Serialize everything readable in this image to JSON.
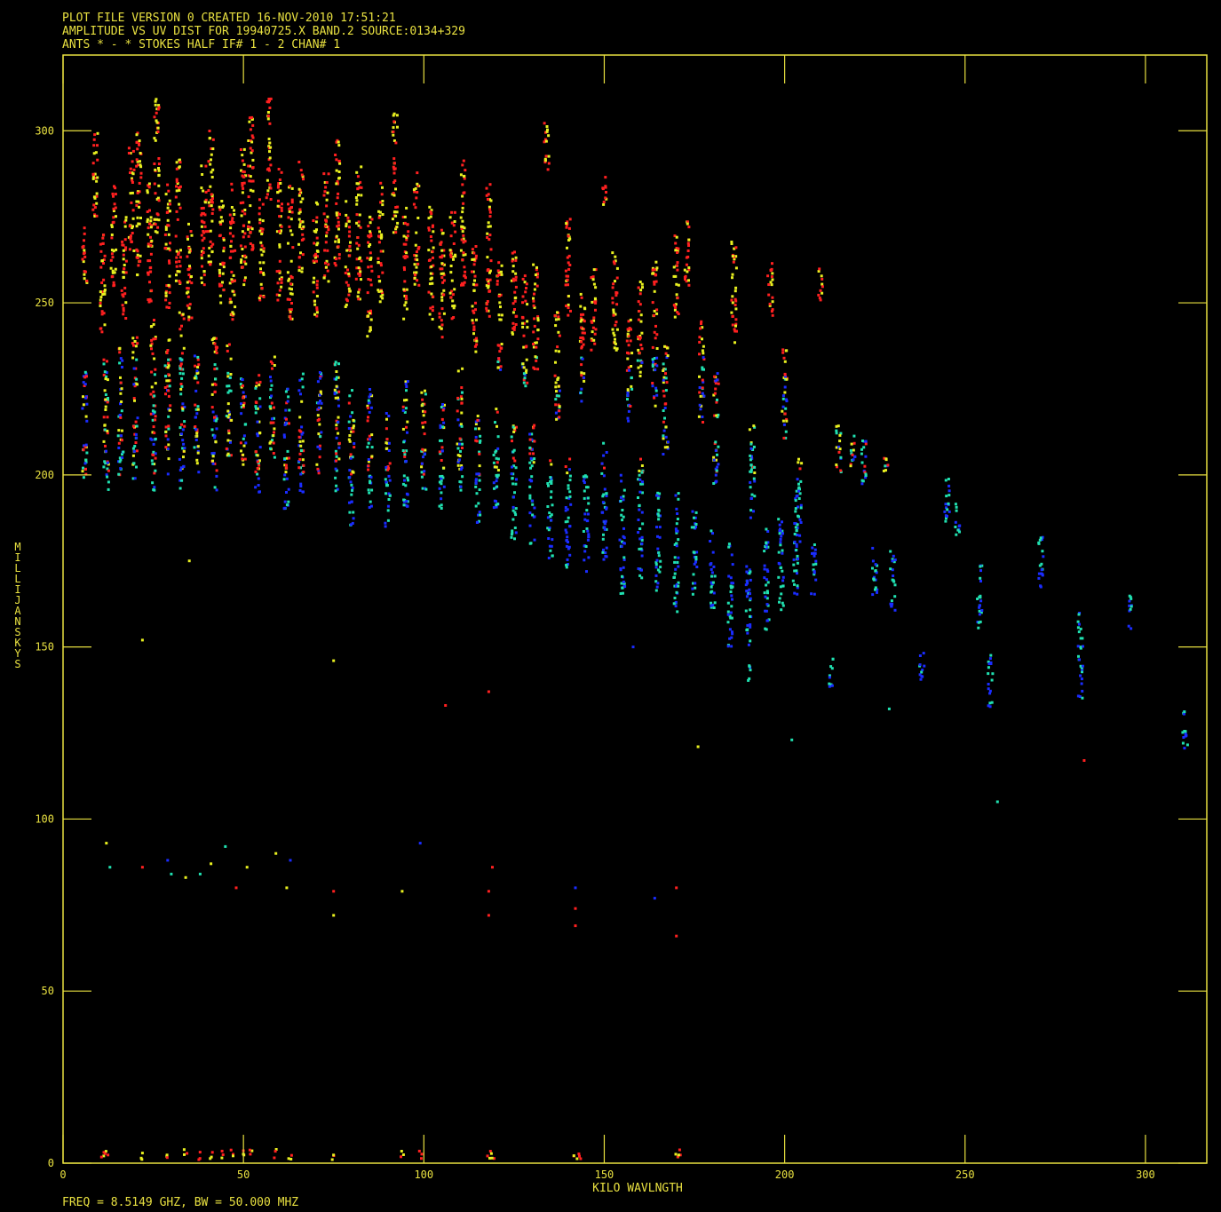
{
  "header": {
    "line1": "PLOT FILE VERSION 0  CREATED 16-NOV-2010 17:51:21",
    "line2": "AMPLITUDE VS UV DIST FOR 19940725.X BAND.2   SOURCE:0134+329",
    "line3": "ANTS * - *    STOKES HALF  IF# 1 - 2  CHAN# 1"
  },
  "footer": "FREQ = 8.5149 GHZ, BW = 50.000 MHZ",
  "colors": {
    "background": "#000000",
    "frame": "#e8e040",
    "text": "#e8e040",
    "series": [
      "#ff2020",
      "#e8f020",
      "#1a2cff",
      "#20e0b0"
    ]
  },
  "chart_data": {
    "type": "scatter",
    "title": "AMPLITUDE VS UV DIST FOR 19940725.X BAND.2   SOURCE:0134+329",
    "xlabel": "KILO WAVLNGTH",
    "ylabel": "MILLIJANSKYS",
    "xlim": [
      0,
      317
    ],
    "ylim": [
      0,
      322
    ],
    "xticks": [
      0,
      50,
      100,
      150,
      200,
      250,
      300
    ],
    "yticks": [
      0,
      50,
      100,
      150,
      200,
      250,
      300
    ],
    "grid": false,
    "columns": [
      {
        "x": 6,
        "y": [
          255,
          272
        ]
      },
      {
        "x": 9,
        "y": [
          275,
          300
        ]
      },
      {
        "x": 11,
        "y": [
          240,
          270
        ]
      },
      {
        "x": 14,
        "y": [
          255,
          285
        ]
      },
      {
        "x": 17,
        "y": [
          245,
          275
        ]
      },
      {
        "x": 19,
        "y": [
          265,
          295
        ]
      },
      {
        "x": 21,
        "y": [
          258,
          300
        ]
      },
      {
        "x": 24,
        "y": [
          250,
          285
        ]
      },
      {
        "x": 26,
        "y": [
          270,
          310
        ]
      },
      {
        "x": 29,
        "y": [
          248,
          285
        ]
      },
      {
        "x": 32,
        "y": [
          255,
          292
        ]
      },
      {
        "x": 35,
        "y": [
          245,
          275
        ]
      },
      {
        "x": 39,
        "y": [
          255,
          290
        ]
      },
      {
        "x": 41,
        "y": [
          260,
          300
        ]
      },
      {
        "x": 44,
        "y": [
          250,
          280
        ]
      },
      {
        "x": 47,
        "y": [
          245,
          285
        ]
      },
      {
        "x": 50,
        "y": [
          255,
          295
        ]
      },
      {
        "x": 52,
        "y": [
          265,
          305
        ]
      },
      {
        "x": 55,
        "y": [
          250,
          280
        ]
      },
      {
        "x": 57,
        "y": [
          280,
          310
        ]
      },
      {
        "x": 60,
        "y": [
          250,
          290
        ]
      },
      {
        "x": 63,
        "y": [
          245,
          285
        ]
      },
      {
        "x": 66,
        "y": [
          258,
          292
        ]
      },
      {
        "x": 70,
        "y": [
          245,
          280
        ]
      },
      {
        "x": 73,
        "y": [
          255,
          288
        ]
      },
      {
        "x": 76,
        "y": [
          260,
          298
        ]
      },
      {
        "x": 79,
        "y": [
          248,
          280
        ]
      },
      {
        "x": 82,
        "y": [
          250,
          290
        ]
      },
      {
        "x": 85,
        "y": [
          240,
          275
        ]
      },
      {
        "x": 88,
        "y": [
          250,
          285
        ]
      },
      {
        "x": 92,
        "y": [
          270,
          305
        ]
      },
      {
        "x": 95,
        "y": [
          245,
          278
        ]
      },
      {
        "x": 98,
        "y": [
          255,
          288
        ]
      },
      {
        "x": 102,
        "y": [
          245,
          280
        ]
      },
      {
        "x": 105,
        "y": [
          240,
          275
        ]
      },
      {
        "x": 108,
        "y": [
          245,
          278
        ]
      },
      {
        "x": 111,
        "y": [
          255,
          292
        ]
      },
      {
        "x": 114,
        "y": [
          235,
          270
        ]
      },
      {
        "x": 118,
        "y": [
          245,
          285
        ]
      },
      {
        "x": 121,
        "y": [
          230,
          262
        ]
      },
      {
        "x": 125,
        "y": [
          240,
          268
        ]
      },
      {
        "x": 128,
        "y": [
          225,
          258
        ]
      },
      {
        "x": 131,
        "y": [
          230,
          262
        ]
      },
      {
        "x": 134,
        "y": [
          288,
          303
        ]
      },
      {
        "x": 137,
        "y": [
          215,
          250
        ]
      },
      {
        "x": 140,
        "y": [
          245,
          275
        ]
      },
      {
        "x": 144,
        "y": [
          220,
          255
        ]
      },
      {
        "x": 147,
        "y": [
          235,
          260
        ]
      },
      {
        "x": 150,
        "y": [
          278,
          287
        ]
      },
      {
        "x": 153,
        "y": [
          235,
          265
        ]
      },
      {
        "x": 157,
        "y": [
          215,
          248
        ]
      },
      {
        "x": 160,
        "y": [
          228,
          258
        ]
      },
      {
        "x": 164,
        "y": [
          220,
          262
        ]
      },
      {
        "x": 167,
        "y": [
          205,
          240
        ]
      },
      {
        "x": 170,
        "y": [
          245,
          270
        ]
      },
      {
        "x": 173,
        "y": [
          255,
          275
        ]
      },
      {
        "x": 177,
        "y": [
          215,
          245
        ]
      },
      {
        "x": 181,
        "y": [
          195,
          230
        ]
      },
      {
        "x": 186,
        "y": [
          238,
          268
        ]
      },
      {
        "x": 191,
        "y": [
          185,
          215
        ]
      },
      {
        "x": 196,
        "y": [
          245,
          262
        ]
      },
      {
        "x": 200,
        "y": [
          210,
          238
        ]
      },
      {
        "x": 204,
        "y": [
          180,
          205
        ]
      },
      {
        "x": 210,
        "y": [
          250,
          260
        ]
      },
      {
        "x": 215,
        "y": [
          200,
          215
        ]
      },
      {
        "x": 222,
        "y": [
          195,
          212
        ]
      },
      {
        "x": 228,
        "y": [
          198,
          205
        ]
      },
      {
        "x": 245,
        "y": [
          185,
          200
        ]
      },
      {
        "x": 248,
        "y": [
          182,
          192
        ]
      },
      {
        "x": 271,
        "y": [
          165,
          182
        ]
      },
      {
        "x": 296,
        "y": [
          155,
          165
        ]
      },
      {
        "x": 6,
        "y": [
          198,
          230
        ]
      },
      {
        "x": 12,
        "y": [
          195,
          235
        ]
      },
      {
        "x": 16,
        "y": [
          200,
          238
        ]
      },
      {
        "x": 20,
        "y": [
          198,
          240
        ]
      },
      {
        "x": 25,
        "y": [
          195,
          245
        ]
      },
      {
        "x": 29,
        "y": [
          200,
          240
        ]
      },
      {
        "x": 33,
        "y": [
          195,
          248
        ]
      },
      {
        "x": 37,
        "y": [
          200,
          235
        ]
      },
      {
        "x": 42,
        "y": [
          195,
          240
        ]
      },
      {
        "x": 46,
        "y": [
          205,
          238
        ]
      },
      {
        "x": 50,
        "y": [
          200,
          228
        ]
      },
      {
        "x": 54,
        "y": [
          195,
          230
        ]
      },
      {
        "x": 58,
        "y": [
          205,
          235
        ]
      },
      {
        "x": 62,
        "y": [
          190,
          225
        ]
      },
      {
        "x": 66,
        "y": [
          195,
          230
        ]
      },
      {
        "x": 71,
        "y": [
          200,
          232
        ]
      },
      {
        "x": 76,
        "y": [
          195,
          235
        ]
      },
      {
        "x": 80,
        "y": [
          185,
          225
        ]
      },
      {
        "x": 85,
        "y": [
          190,
          225
        ]
      },
      {
        "x": 90,
        "y": [
          185,
          218
        ]
      },
      {
        "x": 95,
        "y": [
          190,
          228
        ]
      },
      {
        "x": 100,
        "y": [
          195,
          225
        ]
      },
      {
        "x": 105,
        "y": [
          190,
          222
        ]
      },
      {
        "x": 110,
        "y": [
          195,
          232
        ]
      },
      {
        "x": 115,
        "y": [
          185,
          218
        ]
      },
      {
        "x": 120,
        "y": [
          190,
          222
        ]
      },
      {
        "x": 125,
        "y": [
          180,
          215
        ]
      },
      {
        "x": 130,
        "y": [
          178,
          215
        ]
      },
      {
        "x": 135,
        "y": [
          175,
          205
        ]
      },
      {
        "x": 140,
        "y": [
          172,
          205
        ]
      },
      {
        "x": 145,
        "y": [
          170,
          200
        ]
      },
      {
        "x": 150,
        "y": [
          175,
          210
        ]
      },
      {
        "x": 155,
        "y": [
          165,
          200
        ]
      },
      {
        "x": 160,
        "y": [
          170,
          205
        ]
      },
      {
        "x": 165,
        "y": [
          165,
          195
        ]
      },
      {
        "x": 170,
        "y": [
          160,
          195
        ]
      },
      {
        "x": 175,
        "y": [
          165,
          190
        ]
      },
      {
        "x": 180,
        "y": [
          160,
          185
        ]
      },
      {
        "x": 185,
        "y": [
          150,
          180
        ]
      },
      {
        "x": 190,
        "y": [
          140,
          175
        ]
      },
      {
        "x": 195,
        "y": [
          155,
          185
        ]
      },
      {
        "x": 199,
        "y": [
          160,
          190
        ]
      },
      {
        "x": 203,
        "y": [
          165,
          195
        ]
      },
      {
        "x": 208,
        "y": [
          165,
          180
        ]
      },
      {
        "x": 213,
        "y": [
          138,
          148
        ]
      },
      {
        "x": 219,
        "y": [
          200,
          212
        ]
      },
      {
        "x": 225,
        "y": [
          165,
          180
        ]
      },
      {
        "x": 230,
        "y": [
          160,
          178
        ]
      },
      {
        "x": 238,
        "y": [
          140,
          150
        ]
      },
      {
        "x": 254,
        "y": [
          155,
          175
        ]
      },
      {
        "x": 257,
        "y": [
          132,
          148
        ]
      },
      {
        "x": 282,
        "y": [
          135,
          160
        ]
      },
      {
        "x": 311,
        "y": [
          120,
          133
        ]
      }
    ],
    "outliers": [
      {
        "x": 12,
        "y": 93
      },
      {
        "x": 13,
        "y": 86
      },
      {
        "x": 22,
        "y": 86
      },
      {
        "x": 29,
        "y": 88
      },
      {
        "x": 30,
        "y": 84
      },
      {
        "x": 34,
        "y": 83
      },
      {
        "x": 38,
        "y": 84
      },
      {
        "x": 41,
        "y": 87
      },
      {
        "x": 45,
        "y": 92
      },
      {
        "x": 48,
        "y": 80
      },
      {
        "x": 51,
        "y": 86
      },
      {
        "x": 59,
        "y": 90
      },
      {
        "x": 62,
        "y": 80
      },
      {
        "x": 63,
        "y": 88
      },
      {
        "x": 75,
        "y": 79
      },
      {
        "x": 75,
        "y": 72
      },
      {
        "x": 94,
        "y": 79
      },
      {
        "x": 99,
        "y": 93
      },
      {
        "x": 118,
        "y": 79
      },
      {
        "x": 118,
        "y": 72
      },
      {
        "x": 119,
        "y": 86
      },
      {
        "x": 142,
        "y": 80
      },
      {
        "x": 142,
        "y": 74
      },
      {
        "x": 142,
        "y": 69
      },
      {
        "x": 164,
        "y": 77
      },
      {
        "x": 170,
        "y": 80
      },
      {
        "x": 170,
        "y": 66
      },
      {
        "x": 22,
        "y": 152
      },
      {
        "x": 35,
        "y": 175
      },
      {
        "x": 75,
        "y": 146
      },
      {
        "x": 106,
        "y": 133
      },
      {
        "x": 118,
        "y": 137
      },
      {
        "x": 158,
        "y": 150
      },
      {
        "x": 176,
        "y": 121
      },
      {
        "x": 202,
        "y": 123
      },
      {
        "x": 229,
        "y": 132
      },
      {
        "x": 259,
        "y": 105
      },
      {
        "x": 283,
        "y": 117
      }
    ],
    "floor": [
      11,
      12,
      22,
      29,
      34,
      38,
      41,
      44,
      47,
      50,
      52,
      59,
      63,
      75,
      94,
      99,
      118,
      119,
      142,
      143,
      170,
      171
    ]
  }
}
